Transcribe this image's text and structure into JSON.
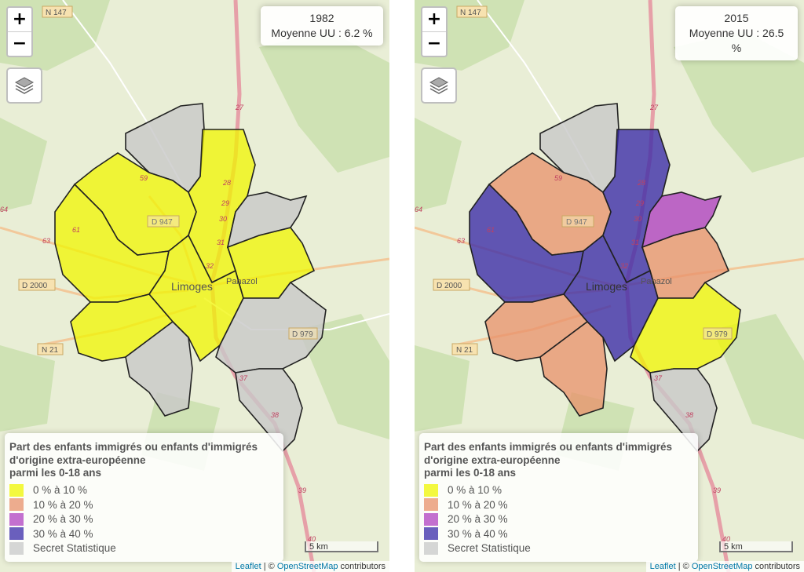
{
  "left": {
    "info_year": "1982",
    "info_mean": "Moyenne UU : 6.2 %"
  },
  "right": {
    "info_year": "2015",
    "info_mean": "Moyenne UU : 26.5 %"
  },
  "zoom": {
    "in": "+",
    "out": "−"
  },
  "legend": {
    "title_line1": "Part des enfants immigrés ou enfants d'immigrés",
    "title_line2": "d'origine extra-européenne",
    "title_line3": "parmi les 0-18 ans",
    "classes": [
      {
        "label": "0 % à 10 %",
        "color": "#f0f500"
      },
      {
        "label": "10 % à 20 %",
        "color": "#e8906a"
      },
      {
        "label": "20 % à 30 %",
        "color": "#b040c0"
      },
      {
        "label": "30 % à 40 %",
        "color": "#3a2aa8"
      },
      {
        "label": "Secret Statistique",
        "color": "#c8c8c8"
      }
    ]
  },
  "scale": "5 km",
  "attribution": {
    "leaflet": "Leaflet",
    "sep": " | © ",
    "osm": "OpenStreetMap",
    "contrib": " contributors"
  },
  "map_labels": {
    "city": "Limoges",
    "panazol": "Panazol",
    "d947": "D 947",
    "d2000": "D 2000",
    "n21": "N 21",
    "n147": "N 147",
    "d979": "D 979",
    "r27": "27",
    "r28": "28",
    "r29": "29",
    "r30": "30",
    "r31": "31",
    "r32": "32",
    "r37": "37",
    "r38": "38",
    "r39": "39",
    "r40": "40",
    "r59": "59",
    "r61": "61",
    "r63": "63",
    "r64": "64"
  },
  "colors": {
    "yellow": "#f0f500",
    "salmon": "#e8906a",
    "purple": "#b040c0",
    "navy": "#3a2aa8",
    "grey": "#c8c8c8"
  }
}
